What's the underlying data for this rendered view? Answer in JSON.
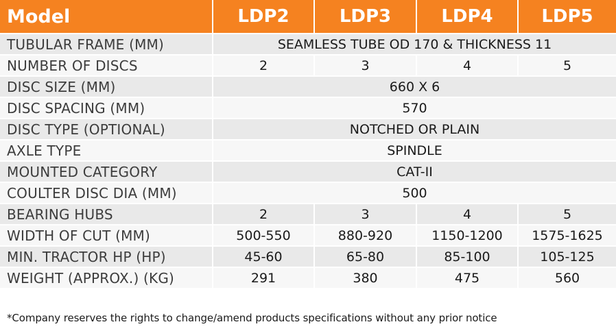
{
  "header": {
    "model_label": "Model",
    "models": [
      "LDP2",
      "LDP3",
      "LDP4",
      "LDP5"
    ]
  },
  "colors": {
    "header_bg": "#f58220",
    "row_odd": "#e9e9e9",
    "row_even": "#f7f7f7"
  },
  "rows": {
    "tubular_frame": {
      "label": "TUBULAR FRAME (MM)",
      "value": "SEAMLESS TUBE OD 170 & THICKNESS 11"
    },
    "number_of_discs": {
      "label": "NUMBER OF DISCS",
      "values": [
        "2",
        "3",
        "4",
        "5"
      ]
    },
    "disc_size": {
      "label": "DISC SIZE (MM)",
      "value": "660 X 6"
    },
    "disc_spacing": {
      "label": "DISC SPACING (MM)",
      "value": "570"
    },
    "disc_type": {
      "label": "DISC TYPE (OPTIONAL)",
      "value": "NOTCHED OR PLAIN"
    },
    "axle_type": {
      "label": "AXLE TYPE",
      "value": "SPINDLE"
    },
    "mounted_category": {
      "label": "MOUNTED CATEGORY",
      "value": "CAT-II"
    },
    "coulter_disc_dia": {
      "label": "COULTER DISC DIA (MM)",
      "value": "500"
    },
    "bearing_hubs": {
      "label": "BEARING HUBS",
      "values": [
        "2",
        "3",
        "4",
        "5"
      ]
    },
    "width_of_cut": {
      "label": "WIDTH OF CUT (MM)",
      "values": [
        "500-550",
        "880-920",
        "1150-1200",
        "1575-1625"
      ]
    },
    "min_tractor_hp": {
      "label": "MIN. TRACTOR HP (HP)",
      "values": [
        "45-60",
        "65-80",
        "85-100",
        "105-125"
      ]
    },
    "weight": {
      "label": "WEIGHT (APPROX.) (KG)",
      "values": [
        "291",
        "380",
        "475",
        "560"
      ]
    }
  },
  "footnote": "*Company reserves the rights to change/amend products specifications without any prior notice"
}
